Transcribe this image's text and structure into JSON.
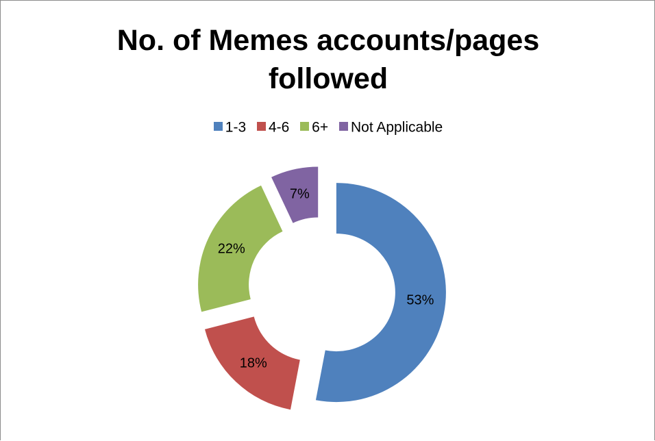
{
  "chart_data": {
    "type": "pie",
    "variant": "exploded-doughnut",
    "title": "No. of Memes accounts/pages followed",
    "title_lines": [
      "No. of Memes accounts/pages",
      "followed"
    ],
    "categories": [
      "1-3",
      "4-6",
      "6+",
      "Not Applicable"
    ],
    "values": [
      53,
      18,
      22,
      7
    ],
    "data_labels": [
      "53%",
      "18%",
      "22%",
      "7%"
    ],
    "colors": [
      "#4f81bd",
      "#c0504d",
      "#9bbb59",
      "#8064a2"
    ],
    "legend_position": "top"
  }
}
